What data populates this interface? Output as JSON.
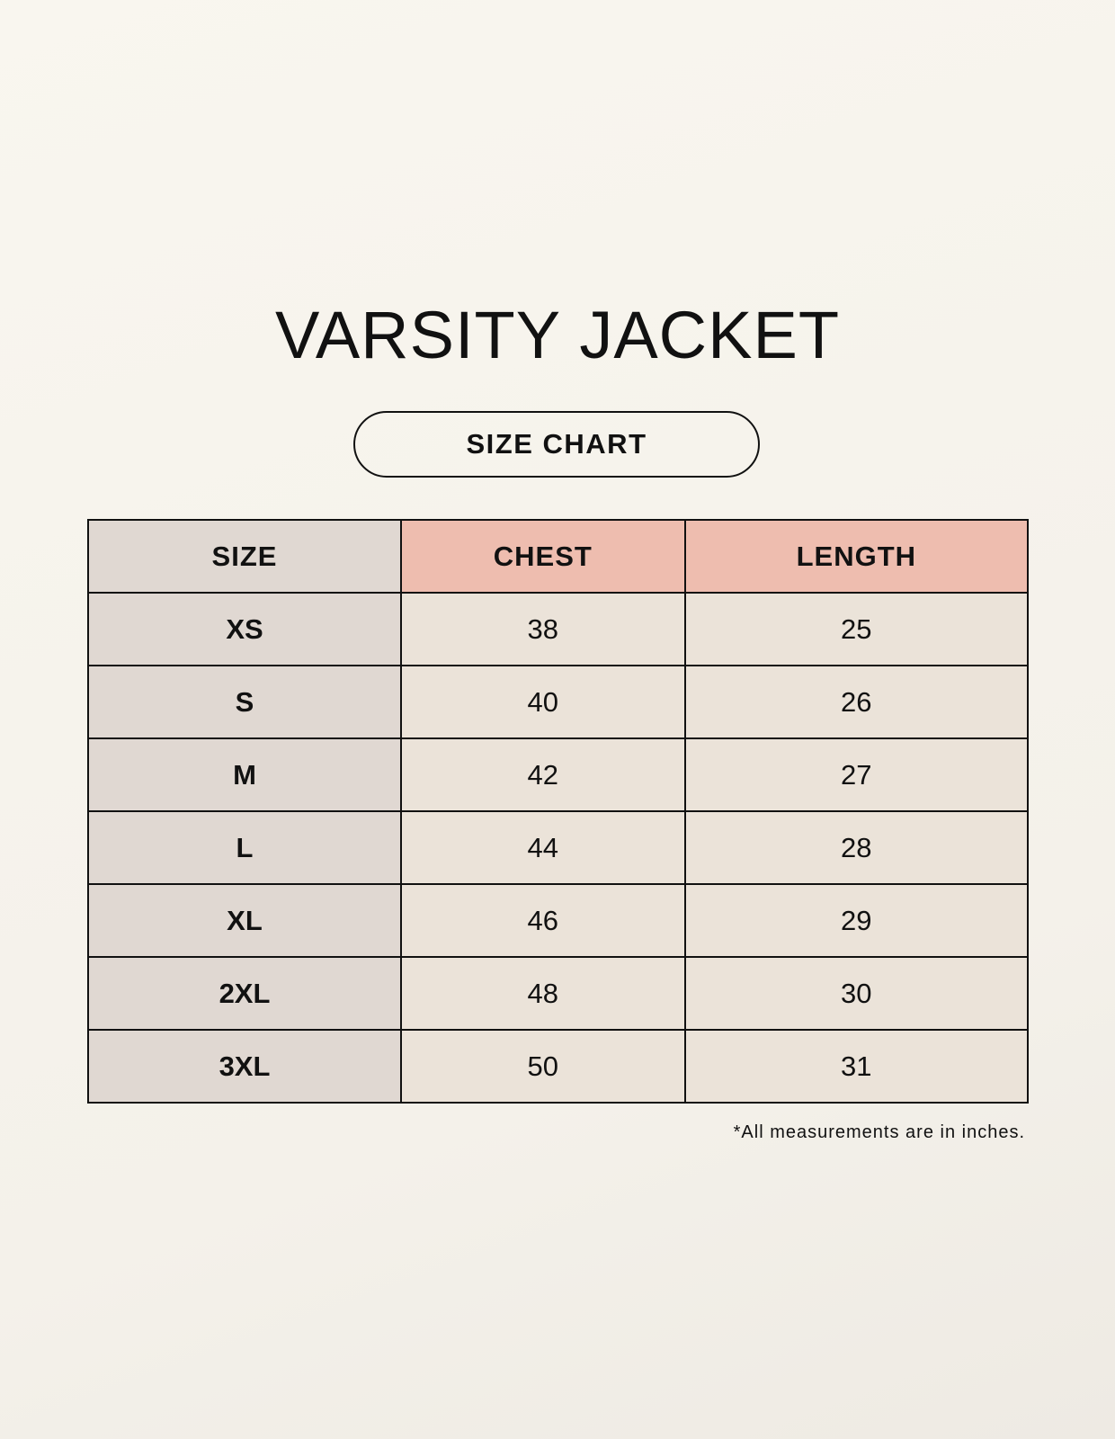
{
  "title": "VARSITY JACKET",
  "subtitle": "SIZE CHART",
  "table": {
    "headers": [
      "SIZE",
      "CHEST",
      "LENGTH"
    ],
    "rows": [
      [
        "XS",
        "38",
        "25"
      ],
      [
        "S",
        "40",
        "26"
      ],
      [
        "M",
        "42",
        "27"
      ],
      [
        "L",
        "44",
        "28"
      ],
      [
        "XL",
        "46",
        "29"
      ],
      [
        "2XL",
        "48",
        "30"
      ],
      [
        "3XL",
        "50",
        "31"
      ]
    ]
  },
  "note": "*All measurements are in inches.",
  "colors": {
    "size_column": "#e0d8d2",
    "header_accent": "#eebdaf",
    "cell": "#ebe3d9"
  }
}
